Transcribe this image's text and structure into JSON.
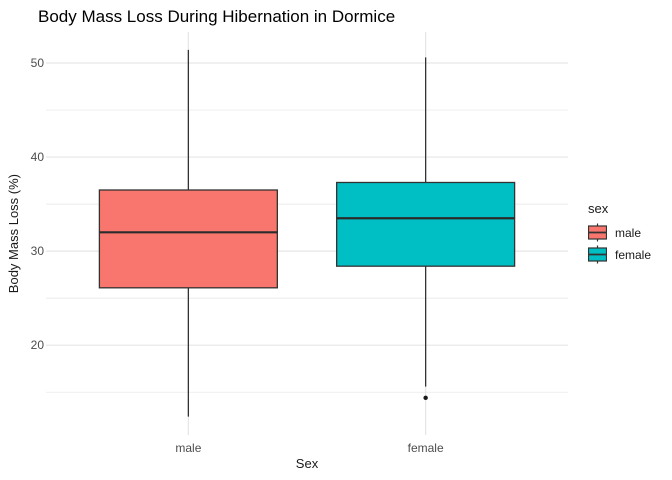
{
  "title": "Body Mass Loss During Hibernation in Dormice",
  "y_axis": {
    "label": "Body Mass Loss (%)"
  },
  "x_axis": {
    "label": "Sex"
  },
  "legend": {
    "title": "sex",
    "entries": [
      {
        "label": "male",
        "color": "#F8766D"
      },
      {
        "label": "female",
        "color": "#00BFC4"
      }
    ]
  },
  "colors": {
    "box_outline": "#333333",
    "median_line": "#2b2b2b",
    "gridline": "#E6E6E6",
    "tick_label": "#4D4D4D",
    "outlier": "#1A1A1A",
    "background": "#FFFFFF"
  },
  "chart_data": {
    "type": "boxplot",
    "title": "Body Mass Loss During Hibernation in Dormice",
    "xlabel": "Sex",
    "ylabel": "Body Mass Loss (%)",
    "categories": [
      "male",
      "female"
    ],
    "ylim": [
      10.45,
      53.3
    ],
    "yticks_major": [
      20,
      30,
      40,
      50
    ],
    "yticks_minor": [
      15,
      25,
      35,
      45
    ],
    "grid": "on",
    "legend_position": "right",
    "series": [
      {
        "name": "male",
        "fill": "#F8766D",
        "min": 12.4,
        "q1": 26.1,
        "median": 32.0,
        "q3": 36.5,
        "max": 51.4,
        "outliers": []
      },
      {
        "name": "female",
        "fill": "#00BFC4",
        "min": 15.6,
        "q1": 28.4,
        "median": 33.5,
        "q3": 37.3,
        "max": 50.6,
        "outliers": [
          14.4
        ]
      }
    ]
  }
}
